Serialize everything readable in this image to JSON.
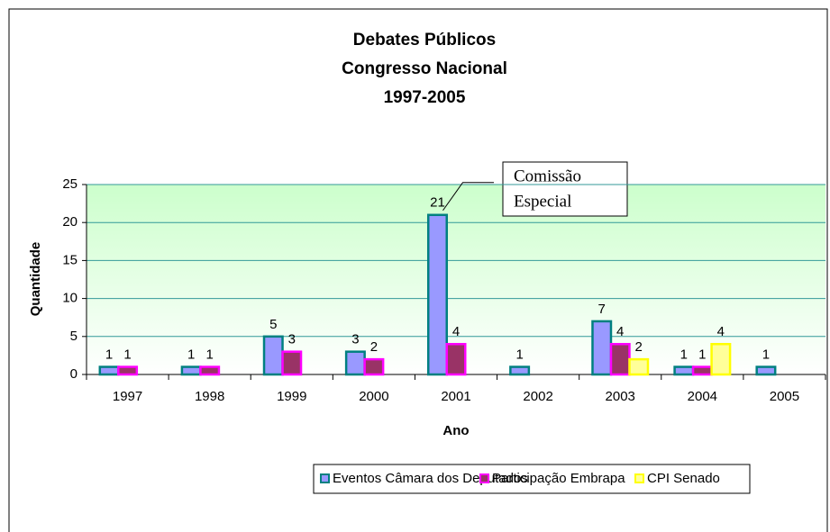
{
  "chart_data": {
    "type": "bar",
    "title": [
      "Debates Públicos",
      "Congresso Nacional",
      "1997-2005"
    ],
    "xlabel": "Ano",
    "ylabel": "Quantidade",
    "categories": [
      "1997",
      "1998",
      "1999",
      "2000",
      "2001",
      "2002",
      "2003",
      "2004",
      "2005"
    ],
    "series": [
      {
        "name": "Eventos Câmara dos Deputados",
        "color": "#9999ff",
        "edgecolor": "#008080",
        "values": [
          1,
          1,
          5,
          3,
          21,
          1,
          7,
          1,
          1
        ]
      },
      {
        "name": "Participação Embrapa",
        "color": "#993366",
        "edgecolor": "#ff00ff",
        "values": [
          1,
          1,
          3,
          2,
          4,
          null,
          4,
          1,
          null
        ]
      },
      {
        "name": "CPI Senado",
        "color": "#ffff99",
        "edgecolor": "#ffff00",
        "values": [
          null,
          null,
          null,
          null,
          null,
          null,
          2,
          4,
          null
        ]
      }
    ],
    "ylim": [
      0,
      25
    ],
    "yticks": [
      0,
      5,
      10,
      15,
      20,
      25
    ],
    "grid": true,
    "legend": "bottom",
    "annotation": {
      "text": [
        "Comissão",
        "Especial"
      ],
      "target": "chart_data.series.0.values.4"
    }
  }
}
